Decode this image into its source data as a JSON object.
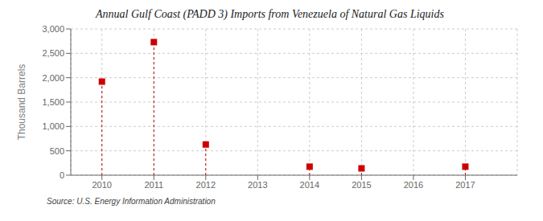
{
  "chart_data": {
    "type": "stem",
    "title": "Annual Gulf Coast (PADD 3) Imports from Venezuela of Natural Gas Liquids",
    "y_label": "Thousand Barrels",
    "source": "Source: U.S. Energy Information Administration",
    "x": [
      2010,
      2011,
      2012,
      2014,
      2015,
      2017
    ],
    "values": [
      1920,
      2730,
      630,
      175,
      140,
      175
    ],
    "color": "#cc0000",
    "marker": "square",
    "line_style": "dashed",
    "xlim": [
      2009.4,
      2018.0
    ],
    "xticks": [
      2010,
      2011,
      2012,
      2013,
      2014,
      2015,
      2016,
      2017
    ],
    "ylim": [
      0,
      3000
    ],
    "yticks": [
      0,
      500,
      {
        "value": 1000,
        "label": "1,000"
      },
      {
        "value": 1500,
        "label": "1,500"
      },
      {
        "value": 2000,
        "label": "2,000"
      },
      {
        "value": 2500,
        "label": "2,500"
      },
      {
        "value": 3000,
        "label": "3,000"
      }
    ],
    "grid": true
  }
}
